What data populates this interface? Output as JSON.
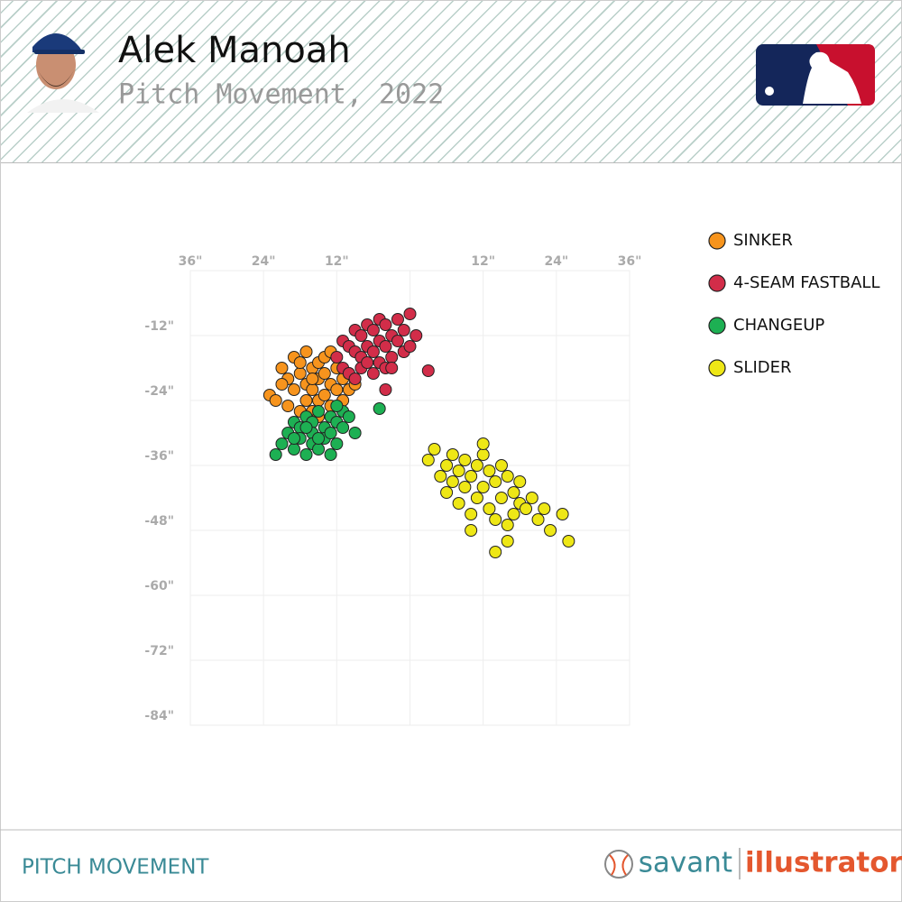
{
  "header": {
    "title": "Alek Manoah",
    "subtitle": "Pitch Movement, 2022"
  },
  "footer": {
    "label": "PITCH MOVEMENT",
    "brand_left": "savant",
    "brand_right": "illustrator"
  },
  "chart_data": {
    "type": "scatter",
    "xlim": [
      -36,
      36
    ],
    "ylim": [
      -84,
      0
    ],
    "xticks": [
      {
        "value": -36,
        "label": "36\""
      },
      {
        "value": -24,
        "label": "24\""
      },
      {
        "value": -12,
        "label": "12\""
      },
      {
        "value": 0,
        "label": null
      },
      {
        "value": 12,
        "label": "12\""
      },
      {
        "value": 24,
        "label": "24\""
      },
      {
        "value": 36,
        "label": "36\""
      }
    ],
    "yticks": [
      {
        "value": -12,
        "label": "-12\""
      },
      {
        "value": -24,
        "label": "-24\""
      },
      {
        "value": -36,
        "label": "-36\""
      },
      {
        "value": -48,
        "label": "-48\""
      },
      {
        "value": -60,
        "label": "-60\""
      },
      {
        "value": -72,
        "label": "-72\""
      },
      {
        "value": -84,
        "label": "-84\""
      }
    ],
    "grid": true,
    "legend": "right",
    "series": [
      {
        "name": "SINKER",
        "color": "#f7941d",
        "x": [
          -23,
          -22,
          -21,
          -20,
          -20,
          -19,
          -19,
          -18,
          -18,
          -17,
          -17,
          -17,
          -16,
          -16,
          -16,
          -15,
          -15,
          -15,
          -14,
          -14,
          -14,
          -13,
          -13,
          -12,
          -12,
          -11,
          -11,
          -10,
          -10,
          -9,
          -21,
          -18,
          -15,
          -13,
          -16
        ],
        "y": [
          -23,
          -24,
          -18,
          -20,
          -25,
          -16,
          -22,
          -19,
          -26,
          -15,
          -21,
          -24,
          -18,
          -22,
          -26,
          -17,
          -20,
          -24,
          -19,
          -23,
          -16,
          -21,
          -25,
          -18,
          -22,
          -20,
          -24,
          -19,
          -22,
          -21,
          -21,
          -17,
          -27,
          -15,
          -20
        ]
      },
      {
        "name": "4-SEAM FASTBALL",
        "color": "#d22d49",
        "x": [
          -12,
          -11,
          -11,
          -10,
          -10,
          -9,
          -9,
          -9,
          -8,
          -8,
          -8,
          -7,
          -7,
          -7,
          -6,
          -6,
          -6,
          -5,
          -5,
          -5,
          -4,
          -4,
          -4,
          -3,
          -3,
          -2,
          -2,
          -1,
          -1,
          0,
          0,
          1,
          -3,
          3,
          -4
        ],
        "y": [
          -16,
          -13,
          -18,
          -14,
          -19,
          -11,
          -15,
          -20,
          -12,
          -16,
          -18,
          -10,
          -14,
          -17,
          -11,
          -15,
          -19,
          -9,
          -13,
          -17,
          -10,
          -14,
          -18,
          -12,
          -16,
          -9,
          -13,
          -11,
          -15,
          -8,
          -14,
          -12,
          -18,
          -18.5,
          -22
        ]
      },
      {
        "name": "CHANGEUP",
        "color": "#1db053",
        "x": [
          -22,
          -21,
          -20,
          -19,
          -19,
          -18,
          -18,
          -17,
          -17,
          -16,
          -16,
          -16,
          -15,
          -15,
          -14,
          -14,
          -13,
          -13,
          -12,
          -12,
          -11,
          -11,
          -10,
          -9,
          -15,
          -17,
          -13,
          -19,
          -12,
          -5
        ],
        "y": [
          -34,
          -32,
          -30,
          -28,
          -33,
          -29,
          -31,
          -27,
          -34,
          -28,
          -30,
          -32,
          -26,
          -33,
          -29,
          -31,
          -27,
          -30,
          -28,
          -32,
          -26,
          -29,
          -27,
          -30,
          -31,
          -29,
          -34,
          -31,
          -25,
          -25.5
        ]
      },
      {
        "name": "SLIDER",
        "color": "#eee716",
        "x": [
          3,
          4,
          5,
          6,
          6,
          7,
          7,
          8,
          8,
          9,
          9,
          10,
          10,
          11,
          11,
          12,
          12,
          13,
          13,
          14,
          14,
          15,
          15,
          16,
          16,
          17,
          17,
          18,
          18,
          19,
          20,
          21,
          22,
          23,
          25,
          26,
          12,
          14,
          10,
          16
        ],
        "y": [
          -35,
          -33,
          -38,
          -36,
          -41,
          -34,
          -39,
          -37,
          -43,
          -35,
          -40,
          -38,
          -45,
          -36,
          -42,
          -34,
          -40,
          -37,
          -44,
          -39,
          -46,
          -36,
          -42,
          -38,
          -47,
          -41,
          -45,
          -39,
          -43,
          -44,
          -42,
          -46,
          -44,
          -48,
          -45,
          -50,
          -32,
          -52,
          -48,
          -50
        ]
      }
    ]
  }
}
